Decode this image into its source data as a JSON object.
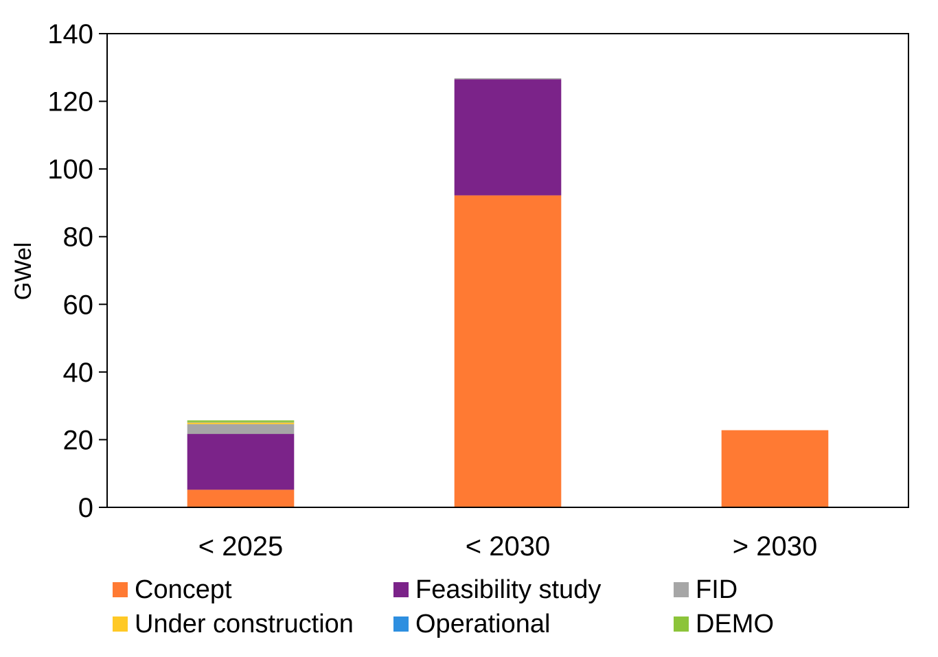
{
  "chart_data": {
    "type": "bar",
    "stacked": true,
    "title": "",
    "xlabel": "",
    "ylabel": "GWel",
    "ylim": [
      0,
      140
    ],
    "yticks": [
      0,
      20,
      40,
      60,
      80,
      100,
      120,
      140
    ],
    "categories": [
      "< 2025",
      "< 2030",
      "> 2030"
    ],
    "series": [
      {
        "name": "Concept",
        "color": "#FF7A33",
        "values": [
          5.2,
          92.2,
          22.8
        ]
      },
      {
        "name": "Feasibility study",
        "color": "#7B2389",
        "values": [
          16.5,
          34.3,
          0
        ]
      },
      {
        "name": "FID",
        "color": "#A6A6A6",
        "values": [
          2.9,
          0.3,
          0
        ]
      },
      {
        "name": "Under construction",
        "color": "#FFC926",
        "values": [
          0.5,
          0,
          0
        ]
      },
      {
        "name": "Operational",
        "color": "#2E8FE0",
        "values": [
          0.1,
          0,
          0
        ]
      },
      {
        "name": "DEMO",
        "color": "#8CC43A",
        "values": [
          0.5,
          0,
          0
        ]
      }
    ],
    "legend": "bottom"
  }
}
